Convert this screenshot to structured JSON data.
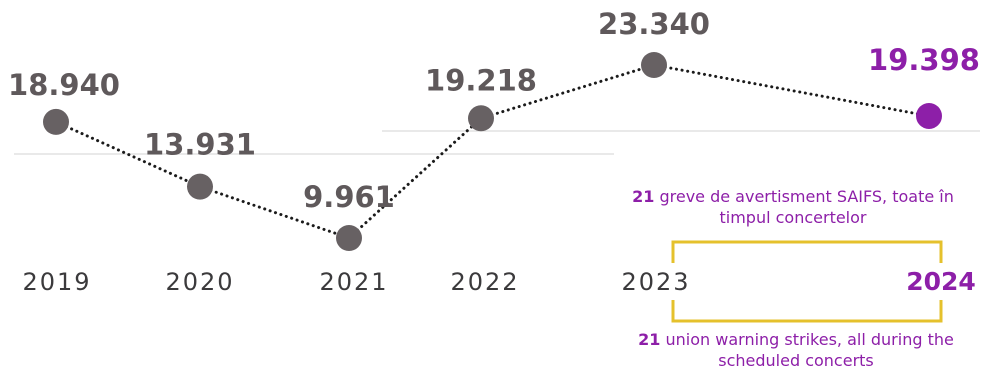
{
  "colors": {
    "point": "#676163",
    "accent": "#8d1fa8",
    "text": "#5f595b",
    "bracket": "#e5c12c",
    "guide": "#dcdcdc"
  },
  "chart_data": {
    "type": "line",
    "x": [
      "2019",
      "2020",
      "2021",
      "2022",
      "2023",
      "2024"
    ],
    "values": [
      18940,
      13931,
      9961,
      19218,
      23340,
      19398
    ],
    "value_labels": [
      "18.940",
      "13.931",
      "9.961",
      "19.218",
      "23.340",
      "19.398"
    ],
    "highlight_index": 5,
    "line_style": "dotted",
    "grid": false
  },
  "notes": {
    "ro": {
      "number": "21",
      "text": "greve de avertisment SAIFS, toate în timpul concertelor"
    },
    "en": {
      "number": "21",
      "text": "union warning strikes, all during the scheduled concerts"
    }
  }
}
